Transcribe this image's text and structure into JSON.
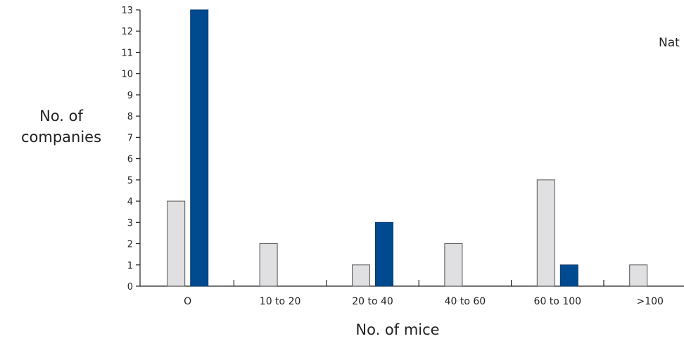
{
  "chart_data": {
    "type": "bar",
    "categories": [
      "O",
      "10 to 20",
      "20 to 40",
      "40 to 60",
      "60 to 100",
      ">100"
    ],
    "series": [
      {
        "values": [
          4,
          2,
          1,
          2,
          5,
          1
        ],
        "color": "#e0e0e2"
      },
      {
        "values": [
          13,
          0,
          3,
          0,
          1,
          0
        ],
        "color": "#004a8f"
      }
    ],
    "yticks": [
      "0",
      "1",
      "2",
      "3",
      "4",
      "5",
      "6",
      "7",
      "8",
      "9",
      "10",
      "11",
      "12",
      "13"
    ],
    "ylim": [
      0,
      13
    ],
    "ylabel": [
      "No. of",
      "companies"
    ],
    "xlabel": "No. of mice",
    "grid": false
  },
  "corner_text": "Nat"
}
